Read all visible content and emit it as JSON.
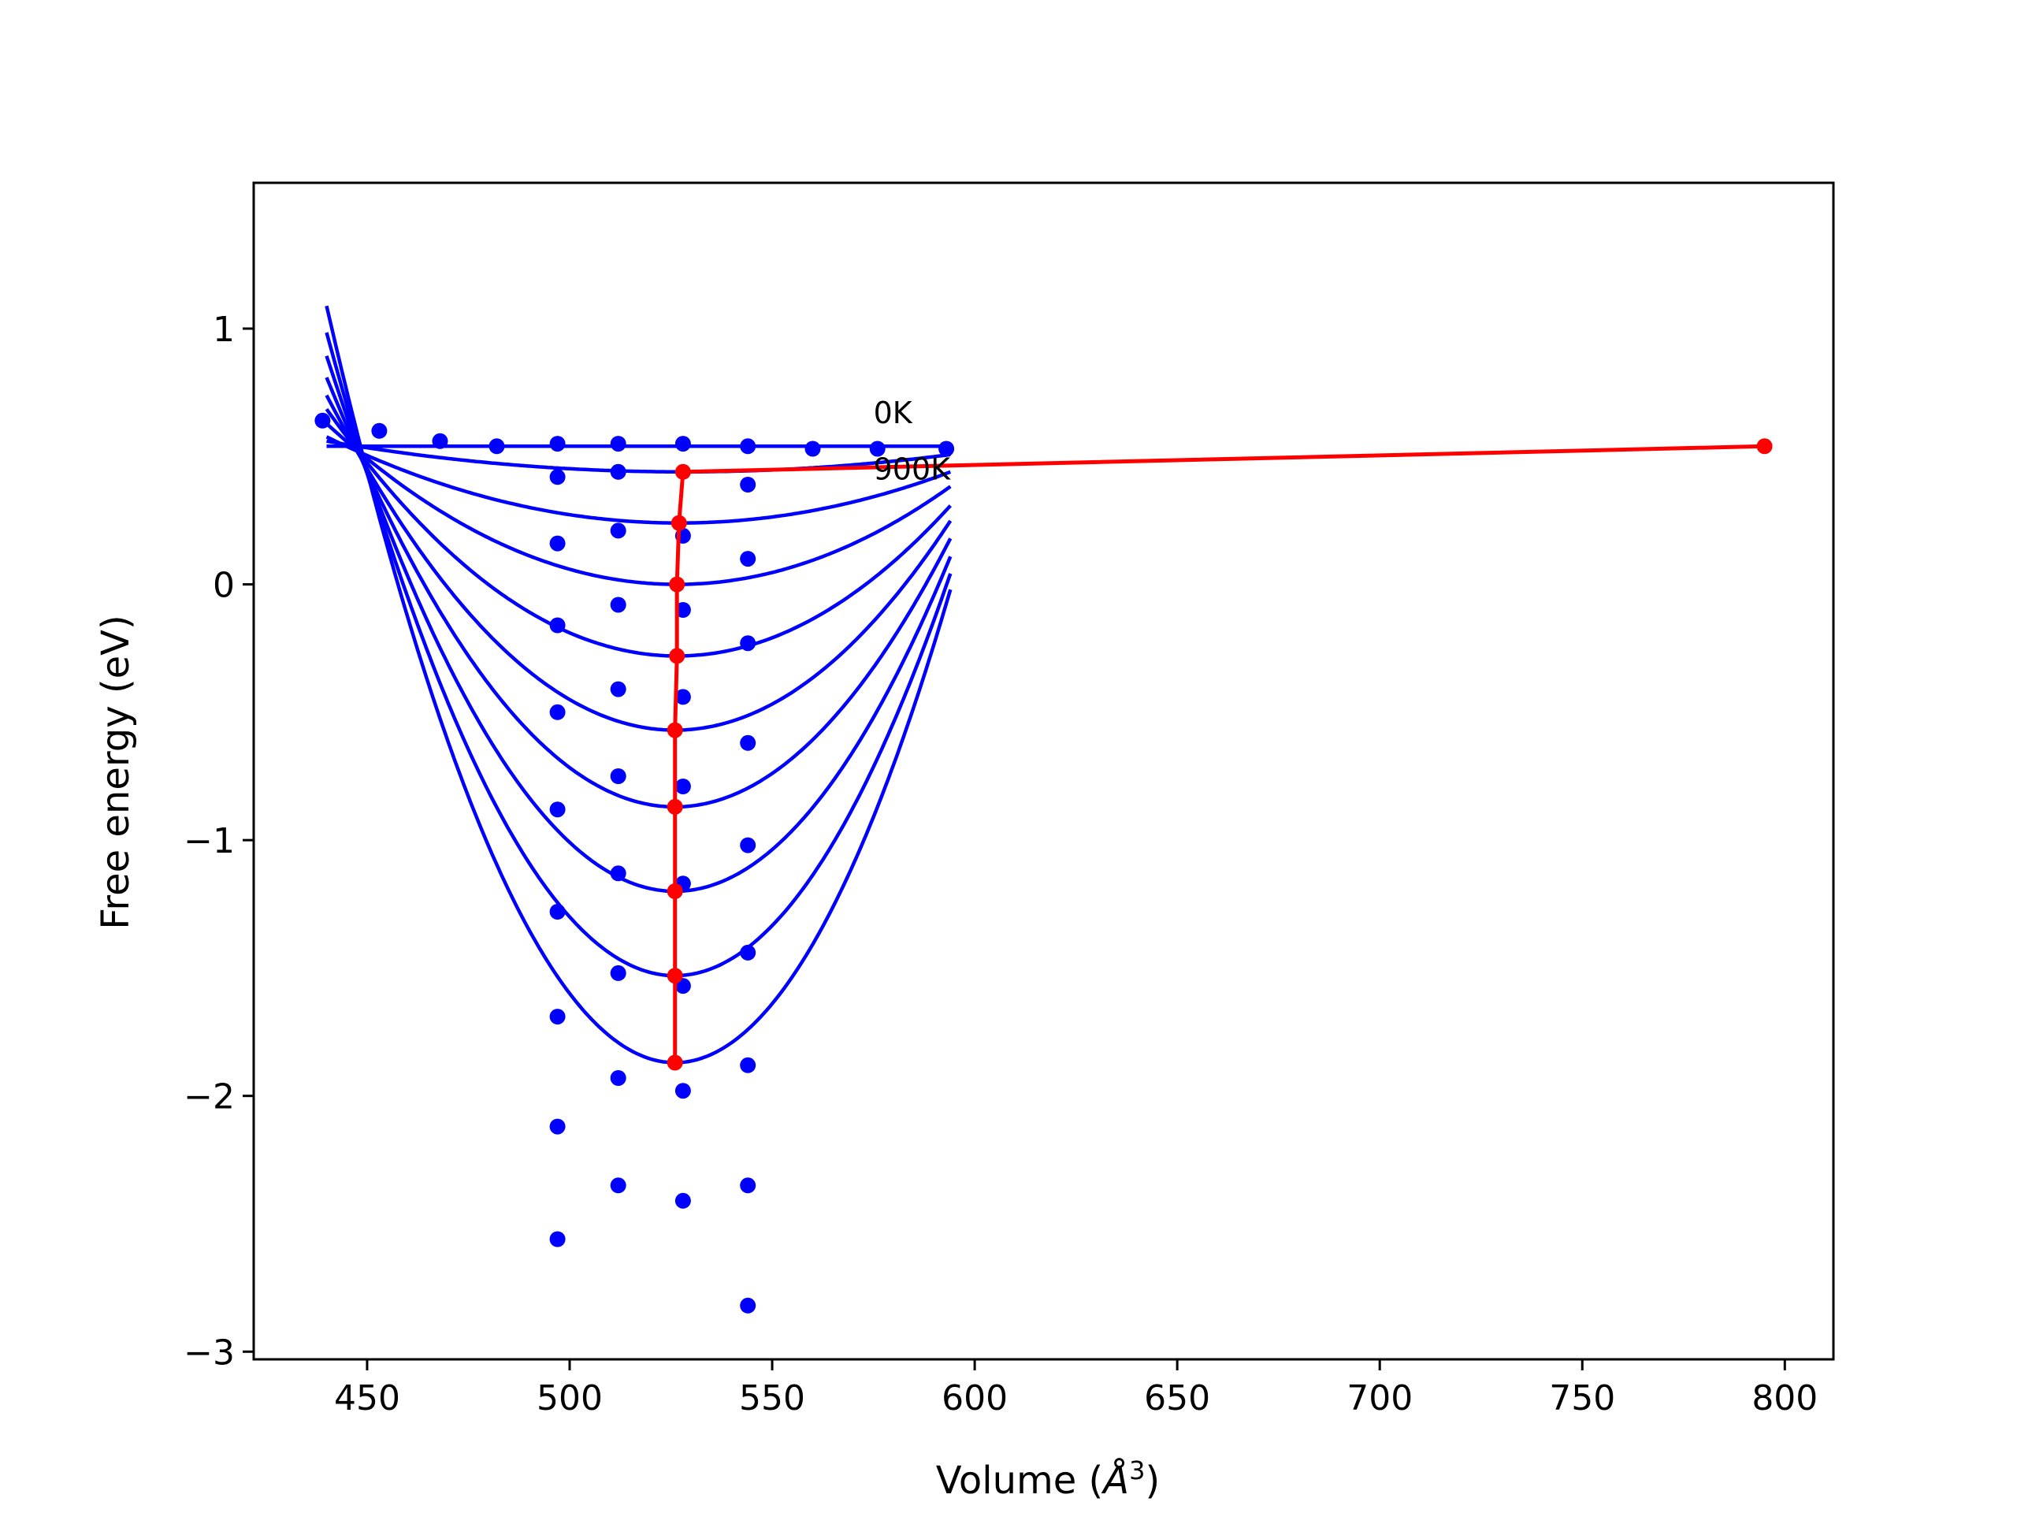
{
  "chart_data": {
    "type": "line",
    "title": "",
    "xlabel": "Volume (Å³)",
    "xlabel_parts": {
      "prefix": "Volume (",
      "symbol": "Å",
      "exponent": "3",
      "suffix": ")"
    },
    "ylabel": "Free energy (eV)",
    "xlim": [
      422,
      812
    ],
    "ylim": [
      -3.03,
      1.57
    ],
    "xticks": [
      450,
      500,
      550,
      600,
      650,
      700,
      750,
      800
    ],
    "yticks": [
      -3,
      -2,
      -1,
      0,
      1
    ],
    "ytick_labels": [
      "−3",
      "−2",
      "−1",
      "0",
      "1"
    ],
    "grid": false,
    "legend": "none",
    "colors": {
      "curves": "#0000ff",
      "points": "#0000ff",
      "minimum_line": "#ff0000"
    },
    "annotations": [
      {
        "text": "0K",
        "x": 575,
        "y": 0.63
      },
      {
        "text": "900K",
        "x": 575,
        "y": 0.41
      }
    ],
    "fit_x_range": [
      440,
      594
    ],
    "temperature_series": [
      {
        "temperature": "0K",
        "min_volume": 795,
        "min_energy": 0.54,
        "curvature": 0.0,
        "points": [
          [
            439,
            0.64
          ],
          [
            453,
            0.6
          ],
          [
            468,
            0.56
          ],
          [
            482,
            0.54
          ],
          [
            497,
            0.55
          ],
          [
            512,
            0.55
          ],
          [
            528,
            0.55
          ],
          [
            544,
            0.54
          ],
          [
            560,
            0.53
          ],
          [
            576,
            0.53
          ],
          [
            593,
            0.53
          ]
        ]
      },
      {
        "temperature": "",
        "min_volume": 528,
        "min_energy": 0.44,
        "curvature": 1.55e-05,
        "points": [
          [
            497,
            0.42
          ],
          [
            512,
            0.44
          ],
          [
            544,
            0.39
          ]
        ]
      },
      {
        "temperature": "",
        "min_volume": 527,
        "min_energy": 0.24,
        "curvature": 4.45e-05,
        "points": [
          [
            497,
            0.16
          ],
          [
            512,
            0.21
          ],
          [
            528,
            0.19
          ],
          [
            544,
            0.1
          ]
        ]
      },
      {
        "temperature": "",
        "min_volume": 526.5,
        "min_energy": 0.0,
        "curvature": 8.4e-05,
        "points": [
          [
            497,
            -0.16
          ],
          [
            512,
            -0.08
          ],
          [
            528,
            -0.1
          ],
          [
            544,
            -0.23
          ]
        ]
      },
      {
        "temperature": "",
        "min_volume": 526.5,
        "min_energy": -0.28,
        "curvature": 0.000129,
        "points": [
          [
            497,
            -0.5
          ],
          [
            512,
            -0.41
          ],
          [
            528,
            -0.44
          ],
          [
            544,
            -0.62
          ]
        ]
      },
      {
        "temperature": "",
        "min_volume": 526,
        "min_energy": -0.57,
        "curvature": 0.000177,
        "points": [
          [
            497,
            -0.88
          ],
          [
            512,
            -0.75
          ],
          [
            528,
            -0.79
          ],
          [
            544,
            -1.02
          ]
        ]
      },
      {
        "temperature": "",
        "min_volume": 526,
        "min_energy": -0.87,
        "curvature": 0.000227,
        "points": [
          [
            497,
            -1.28
          ],
          [
            512,
            -1.13
          ],
          [
            528,
            -1.17
          ],
          [
            544,
            -1.44
          ]
        ]
      },
      {
        "temperature": "",
        "min_volume": 526,
        "min_energy": -1.2,
        "curvature": 0.000283,
        "points": [
          [
            497,
            -1.69
          ],
          [
            512,
            -1.52
          ],
          [
            528,
            -1.57
          ],
          [
            544,
            -1.88
          ]
        ]
      },
      {
        "temperature": "",
        "min_volume": 526,
        "min_energy": -1.53,
        "curvature": 0.00034,
        "points": [
          [
            497,
            -2.12
          ],
          [
            512,
            -1.93
          ],
          [
            528,
            -1.98
          ],
          [
            544,
            -2.35
          ]
        ]
      },
      {
        "temperature": "900K",
        "min_volume": 526,
        "min_energy": -1.87,
        "curvature": 0.0004,
        "points": [
          [
            497,
            -2.56
          ],
          [
            512,
            -2.35
          ],
          [
            528,
            -2.41
          ],
          [
            544,
            -2.82
          ]
        ]
      }
    ],
    "minimum_line": {
      "x": [
        795,
        528,
        527,
        526.5,
        526.5,
        526,
        526,
        526,
        526,
        526
      ],
      "y": [
        0.54,
        0.44,
        0.24,
        0.0,
        -0.28,
        -0.57,
        -0.87,
        -1.2,
        -1.53,
        -1.87
      ]
    }
  }
}
